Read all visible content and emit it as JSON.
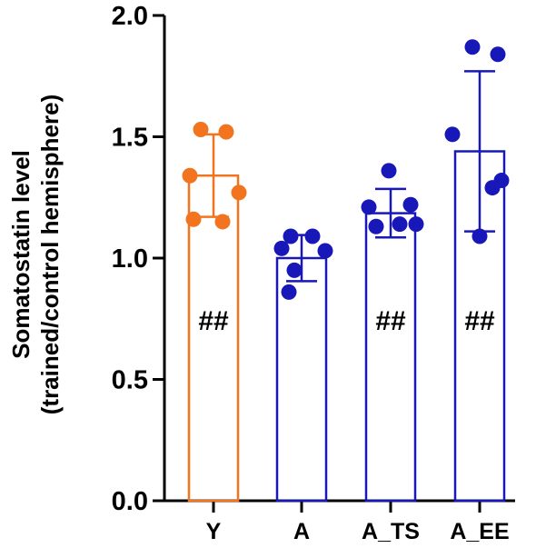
{
  "chart_data": {
    "type": "bar",
    "ylabel_lines": [
      "Somatostatin level",
      "(trained/control hemisphere)"
    ],
    "ylim": [
      0,
      2.0
    ],
    "yticks": [
      "0.0",
      "0.5",
      "1.0",
      "1.5",
      "2.0"
    ],
    "categories": [
      "Y",
      "A",
      "A_TS",
      "A_EE"
    ],
    "values": [
      1.34,
      1.0,
      1.185,
      1.44
    ],
    "sd": [
      0.17,
      0.095,
      0.1,
      0.33
    ],
    "points": [
      [
        1.53,
        1.52,
        1.34,
        1.27,
        1.16,
        1.15
      ],
      [
        1.09,
        1.09,
        1.04,
        1.03,
        0.95,
        0.86
      ],
      [
        1.36,
        1.22,
        1.21,
        1.14,
        1.13,
        1.14
      ],
      [
        1.87,
        1.84,
        1.51,
        1.32,
        1.29,
        1.09
      ]
    ],
    "annotations": [
      "##",
      "",
      "##",
      "##"
    ],
    "colors": [
      "#f2741e",
      "#1818b8",
      "#1818b8",
      "#1818b8"
    ],
    "grid": false,
    "legend": "none"
  }
}
